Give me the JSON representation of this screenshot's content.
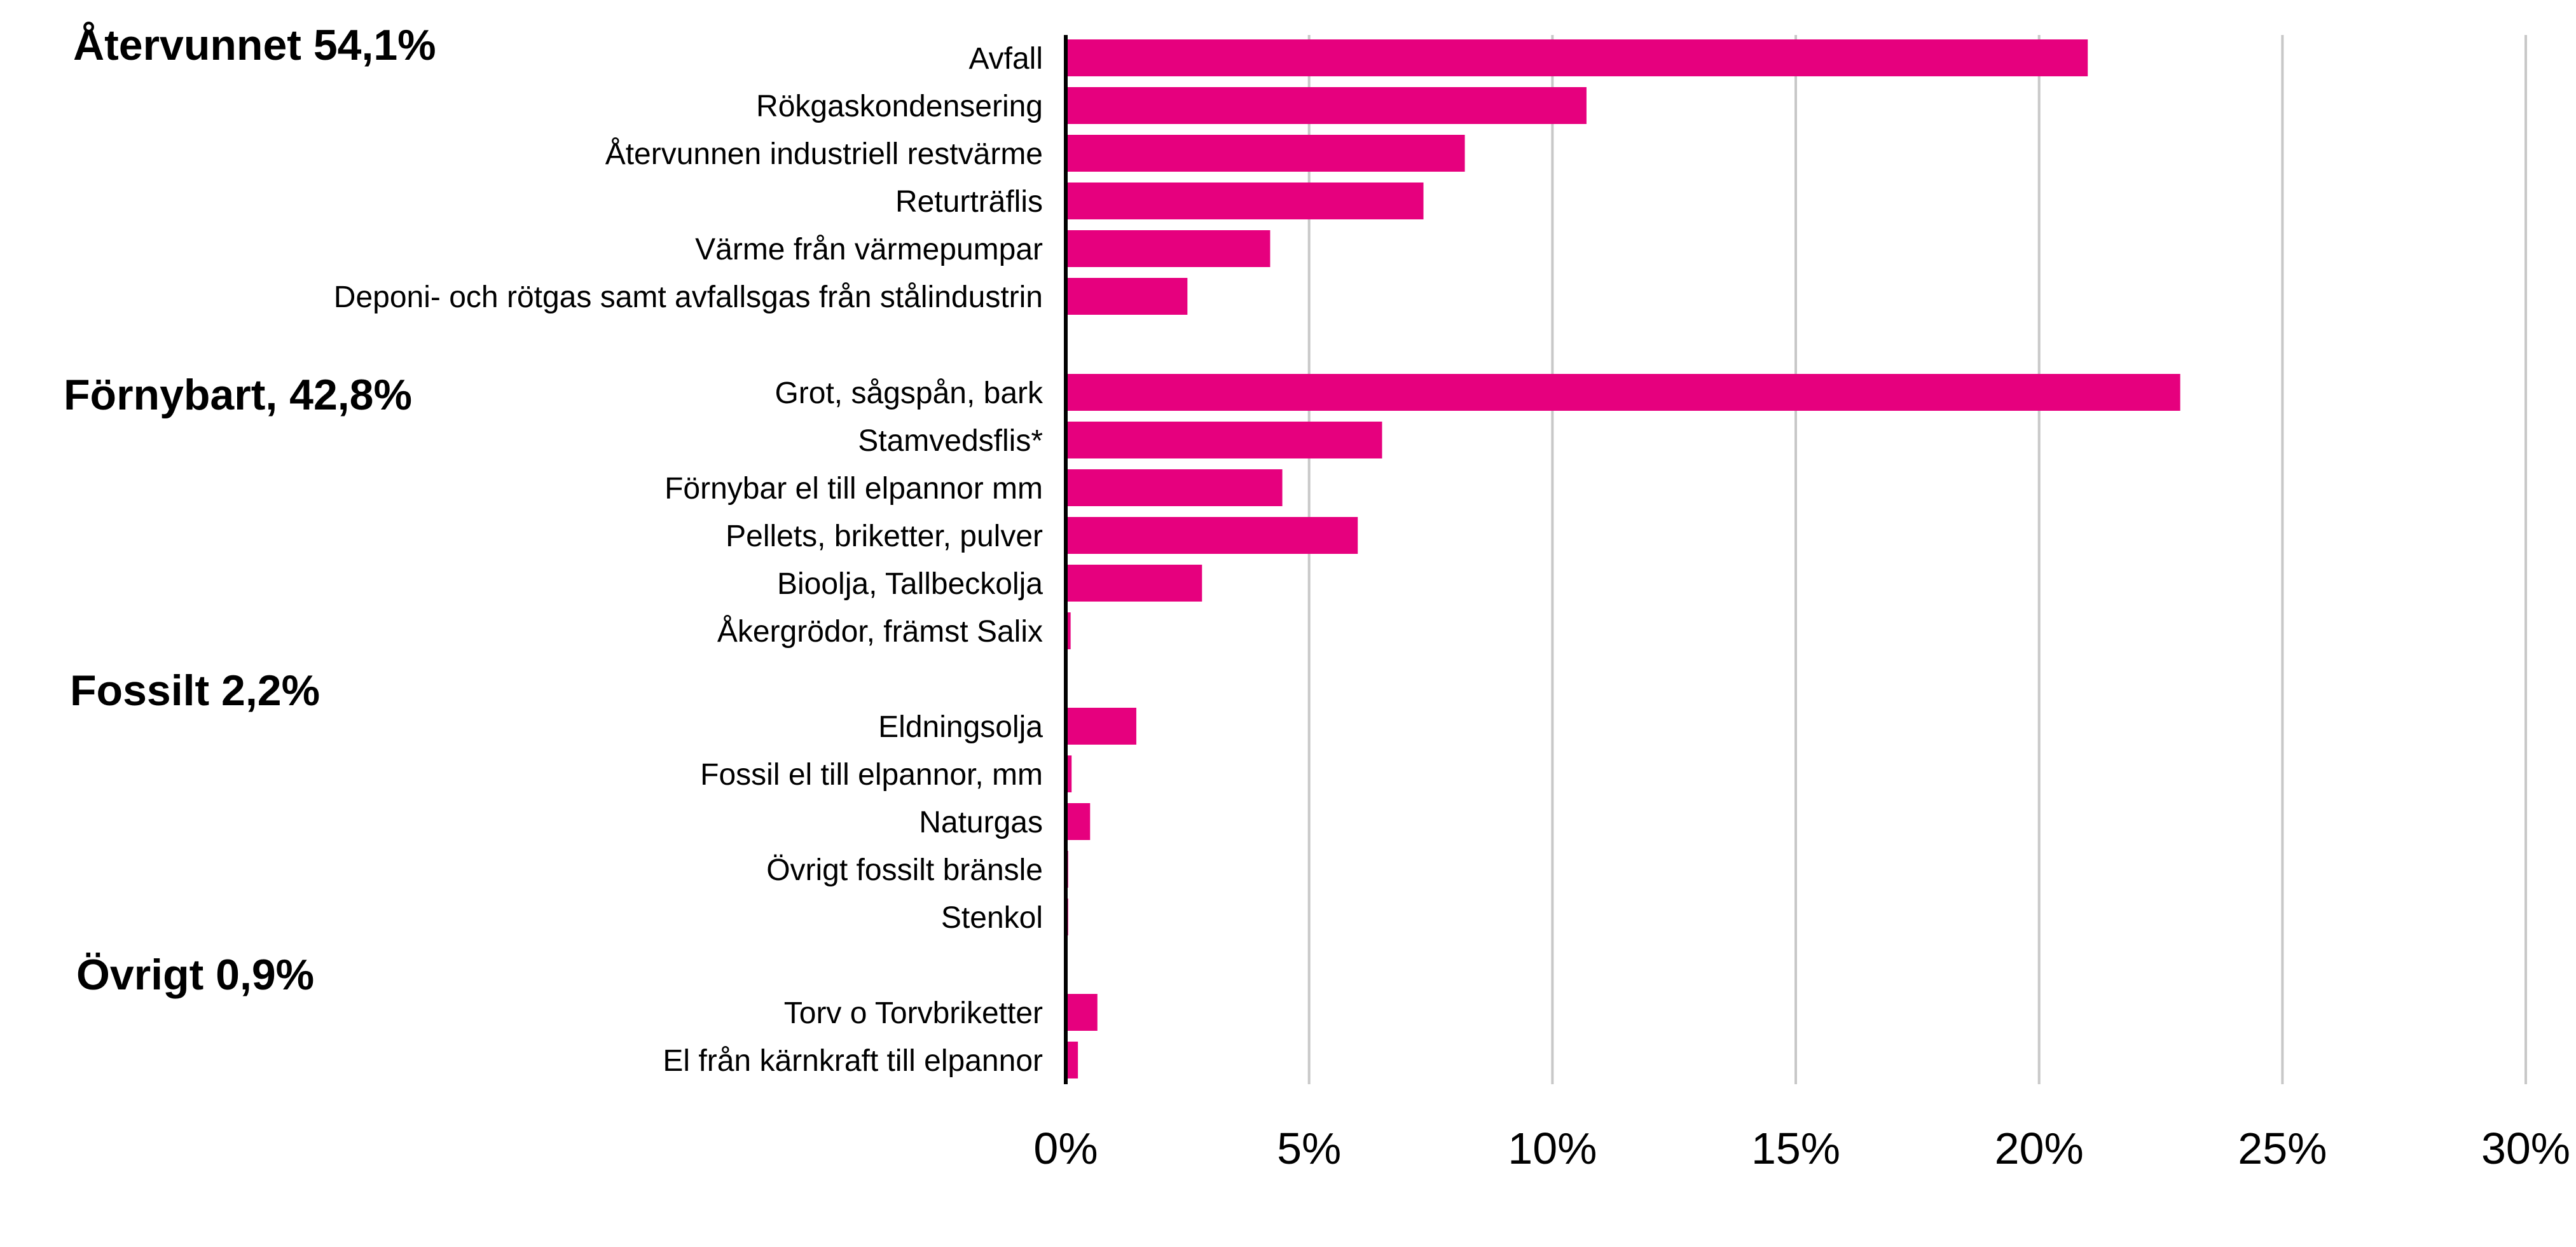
{
  "chart_data": {
    "type": "bar",
    "orientation": "horizontal",
    "bar_color": "#E6007E",
    "xlim": [
      0,
      30
    ],
    "xticks": [
      0,
      5,
      10,
      15,
      20,
      25,
      30
    ],
    "tick_labels": [
      "0%",
      "5%",
      "10%",
      "15%",
      "20%",
      "25%",
      "30%"
    ],
    "grid": true,
    "legend": "none",
    "groups": [
      {
        "label": "Återvunnet 54,1%",
        "categories": [
          "Avfall",
          "Rökgaskondensering",
          "Återvunnen industriell restvärme",
          "Returträflis",
          "Värme från värmepumpar",
          "Deponi- och rötgas samt avfallsgas från stålindustrin"
        ],
        "values": [
          21.0,
          10.7,
          8.2,
          7.35,
          4.2,
          2.5
        ]
      },
      {
        "label": "Förnybart, 42,8%",
        "categories": [
          "Grot, sågspån, bark",
          "Stamvedsflis*",
          "Förnybar el till elpannor mm",
          "Pellets, briketter, pulver",
          "Bioolja, Tallbeckolja",
          "Åkergrödor, främst Salix"
        ],
        "values": [
          22.9,
          6.5,
          4.45,
          6.0,
          2.8,
          0.1
        ]
      },
      {
        "label": "Fossilt 2,2%",
        "categories": [
          "Eldningsolja",
          "Fossil el till elpannor, mm",
          "Naturgas",
          "Övrigt fossilt bränsle",
          "Stenkol"
        ],
        "values": [
          1.45,
          0.12,
          0.5,
          0.05,
          0.05
        ]
      },
      {
        "label": "Övrigt 0,9%",
        "categories": [
          "Torv o Torvbriketter",
          "El från kärnkraft till elpannor"
        ],
        "values": [
          0.65,
          0.25
        ]
      }
    ]
  }
}
